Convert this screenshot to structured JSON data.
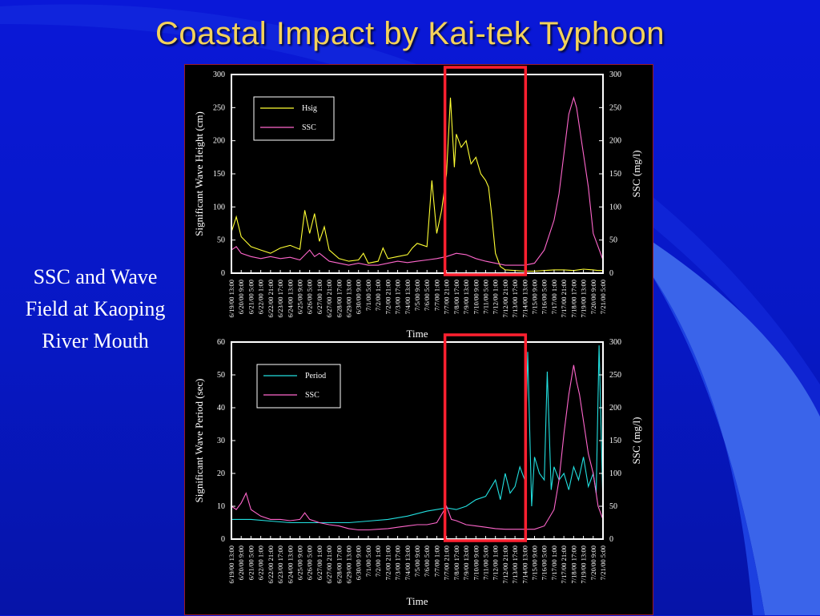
{
  "slide": {
    "title": "Coastal Impact by Kai-tek Typhoon",
    "caption_lines": [
      "SSC and Wave",
      "Field at Kaoping",
      "River Mouth"
    ]
  },
  "colors": {
    "background": "#0718c4",
    "title": "#f4d25a",
    "hsig": "#ffff33",
    "period": "#22e0e0",
    "ssc": "#ff66cc",
    "highlight_box": "#ff2030"
  },
  "time_ticks": [
    "6/19/00 13:00",
    "6/20/00 9:00",
    "6/21/00 5:00",
    "6/22/00 1:00",
    "6/22/00 21:00",
    "6/23/00 17:00",
    "6/24/00 13:00",
    "6/25/00 9:00",
    "6/26/00 5:00",
    "6/27/00 1:00",
    "6/27/00 21:00",
    "6/28/00 17:00",
    "6/29/00 13:00",
    "6/30/00 9:00",
    "7/1/00 5:00",
    "7/2/00 1:00",
    "7/2/00 21:00",
    "7/3/00 17:00",
    "7/4/00 13:00",
    "7/5/00 9:00",
    "7/6/00 5:00",
    "7/7/00 1:00",
    "7/7/00 21:00",
    "7/8/00 17:00",
    "7/9/00 13:00",
    "7/10/00 9:00",
    "7/11/00 5:00",
    "7/12/00 1:00",
    "7/12/00 21:00",
    "7/13/00 17:00",
    "7/14/00 13:00",
    "7/15/00 9:00",
    "7/16/00 5:00",
    "7/17/00 1:00",
    "7/17/00 21:00",
    "7/18/00 17:00",
    "7/19/00 13:00",
    "7/20/00 9:00",
    "7/21/00 5:00"
  ],
  "chart_data": [
    {
      "type": "line",
      "xlabel": "Time",
      "ylabel": "Significant Wave Height (cm)",
      "y2label": "SSC (mg/l)",
      "ylim": [
        0,
        300
      ],
      "y2lim": [
        0,
        300
      ],
      "yticks": [
        "0",
        "50",
        "100",
        "150",
        "200",
        "250",
        "300"
      ],
      "y2ticks": [
        "0",
        "50",
        "100",
        "150",
        "200",
        "250",
        "300"
      ],
      "legend_position": "top-left",
      "highlight_range": [
        "7/7/00 21:00",
        "7/14/00 13:00"
      ],
      "series": [
        {
          "name": "Hsig",
          "axis": "left",
          "color": "#ffff33",
          "points": [
            [
              0,
              62
            ],
            [
              0.5,
              85
            ],
            [
              1,
              55
            ],
            [
              2,
              40
            ],
            [
              3,
              35
            ],
            [
              4,
              30
            ],
            [
              5,
              38
            ],
            [
              6,
              42
            ],
            [
              7,
              36
            ],
            [
              7.5,
              95
            ],
            [
              8,
              60
            ],
            [
              8.5,
              90
            ],
            [
              9,
              48
            ],
            [
              9.5,
              70
            ],
            [
              10,
              35
            ],
            [
              11,
              22
            ],
            [
              12,
              18
            ],
            [
              13,
              20
            ],
            [
              13.5,
              30
            ],
            [
              14,
              15
            ],
            [
              15,
              18
            ],
            [
              15.5,
              38
            ],
            [
              16,
              22
            ],
            [
              17,
              25
            ],
            [
              18,
              28
            ],
            [
              18.5,
              38
            ],
            [
              19,
              45
            ],
            [
              20,
              40
            ],
            [
              20.5,
              140
            ],
            [
              21,
              60
            ],
            [
              21.5,
              95
            ],
            [
              22,
              150
            ],
            [
              22.4,
              265
            ],
            [
              22.8,
              160
            ],
            [
              23,
              210
            ],
            [
              23.5,
              190
            ],
            [
              24,
              200
            ],
            [
              24.5,
              165
            ],
            [
              25,
              175
            ],
            [
              25.5,
              150
            ],
            [
              26,
              140
            ],
            [
              26.3,
              130
            ],
            [
              26.6,
              90
            ],
            [
              27,
              30
            ],
            [
              27.5,
              10
            ],
            [
              28,
              5
            ],
            [
              29,
              4
            ],
            [
              30,
              3
            ],
            [
              31,
              3
            ],
            [
              32,
              4
            ],
            [
              33,
              5
            ],
            [
              34,
              5
            ],
            [
              35,
              4
            ],
            [
              36,
              6
            ],
            [
              37,
              5
            ],
            [
              37.5,
              4
            ],
            [
              38,
              4
            ]
          ]
        },
        {
          "name": "SSC",
          "axis": "right",
          "color": "#ff66cc",
          "points": [
            [
              0,
              35
            ],
            [
              0.5,
              40
            ],
            [
              1,
              30
            ],
            [
              2,
              25
            ],
            [
              3,
              22
            ],
            [
              4,
              25
            ],
            [
              5,
              22
            ],
            [
              6,
              24
            ],
            [
              7,
              20
            ],
            [
              8,
              35
            ],
            [
              8.5,
              25
            ],
            [
              9,
              30
            ],
            [
              10,
              18
            ],
            [
              11,
              15
            ],
            [
              12,
              12
            ],
            [
              13,
              15
            ],
            [
              14,
              12
            ],
            [
              15,
              12
            ],
            [
              16,
              15
            ],
            [
              17,
              18
            ],
            [
              18,
              16
            ],
            [
              19,
              18
            ],
            [
              20,
              20
            ],
            [
              21,
              22
            ],
            [
              22,
              25
            ],
            [
              23,
              30
            ],
            [
              24,
              28
            ],
            [
              25,
              22
            ],
            [
              26,
              18
            ],
            [
              27,
              15
            ],
            [
              28,
              12
            ],
            [
              29,
              12
            ],
            [
              30,
              12
            ],
            [
              31,
              15
            ],
            [
              32,
              35
            ],
            [
              33,
              80
            ],
            [
              33.5,
              120
            ],
            [
              34,
              180
            ],
            [
              34.5,
              240
            ],
            [
              35,
              265
            ],
            [
              35.3,
              250
            ],
            [
              35.7,
              210
            ],
            [
              36,
              180
            ],
            [
              36.5,
              130
            ],
            [
              37,
              60
            ],
            [
              37.5,
              40
            ],
            [
              38,
              20
            ]
          ]
        }
      ]
    },
    {
      "type": "line",
      "xlabel": "Time",
      "ylabel": "Significant Wave Period (sec)",
      "y2label": "SSC (mg/l)",
      "ylim": [
        0,
        60
      ],
      "y2lim": [
        0,
        300
      ],
      "yticks": [
        "0",
        "10",
        "20",
        "30",
        "40",
        "50",
        "60"
      ],
      "y2ticks": [
        "0",
        "50",
        "100",
        "150",
        "200",
        "250",
        "300"
      ],
      "legend_position": "top-left",
      "highlight_range": [
        "7/7/00 21:00",
        "7/14/00 13:00"
      ],
      "series": [
        {
          "name": "Period",
          "axis": "left",
          "color": "#22e0e0",
          "points": [
            [
              0,
              6
            ],
            [
              2,
              6
            ],
            [
              4,
              5.5
            ],
            [
              6,
              5
            ],
            [
              8,
              5
            ],
            [
              10,
              5
            ],
            [
              12,
              5
            ],
            [
              14,
              5.5
            ],
            [
              16,
              6
            ],
            [
              18,
              7
            ],
            [
              20,
              8.5
            ],
            [
              21,
              9
            ],
            [
              22,
              9.5
            ],
            [
              23,
              9
            ],
            [
              24,
              10
            ],
            [
              25,
              12
            ],
            [
              26,
              13
            ],
            [
              27,
              18
            ],
            [
              27.5,
              12
            ],
            [
              28,
              20
            ],
            [
              28.5,
              14
            ],
            [
              29,
              16
            ],
            [
              29.5,
              22
            ],
            [
              30,
              18
            ],
            [
              30.3,
              57
            ],
            [
              30.7,
              10
            ],
            [
              31,
              25
            ],
            [
              31.5,
              20
            ],
            [
              32,
              18
            ],
            [
              32.3,
              51
            ],
            [
              32.7,
              15
            ],
            [
              33,
              22
            ],
            [
              33.5,
              18
            ],
            [
              34,
              20
            ],
            [
              34.5,
              15
            ],
            [
              35,
              22
            ],
            [
              35.5,
              18
            ],
            [
              36,
              25
            ],
            [
              36.5,
              16
            ],
            [
              37,
              20
            ],
            [
              37.3,
              14
            ],
            [
              37.6,
              59
            ],
            [
              38,
              10
            ]
          ]
        },
        {
          "name": "SSC",
          "axis": "right",
          "color": "#ff66cc",
          "points": [
            [
              0,
              50
            ],
            [
              0.5,
              45
            ],
            [
              1,
              55
            ],
            [
              1.5,
              70
            ],
            [
              2,
              45
            ],
            [
              3,
              35
            ],
            [
              4,
              30
            ],
            [
              5,
              30
            ],
            [
              6,
              28
            ],
            [
              7,
              30
            ],
            [
              7.5,
              40
            ],
            [
              8,
              30
            ],
            [
              9,
              25
            ],
            [
              10,
              22
            ],
            [
              11,
              20
            ],
            [
              12,
              16
            ],
            [
              13,
              14
            ],
            [
              14,
              14
            ],
            [
              15,
              15
            ],
            [
              16,
              16
            ],
            [
              17,
              18
            ],
            [
              18,
              20
            ],
            [
              19,
              22
            ],
            [
              20,
              22
            ],
            [
              21,
              25
            ],
            [
              22,
              50
            ],
            [
              22.5,
              30
            ],
            [
              23,
              28
            ],
            [
              24,
              22
            ],
            [
              25,
              20
            ],
            [
              26,
              18
            ],
            [
              27,
              16
            ],
            [
              28,
              15
            ],
            [
              29,
              15
            ],
            [
              30,
              15
            ],
            [
              31,
              15
            ],
            [
              32,
              20
            ],
            [
              33,
              45
            ],
            [
              33.5,
              90
            ],
            [
              34,
              160
            ],
            [
              34.5,
              220
            ],
            [
              35,
              265
            ],
            [
              35.3,
              240
            ],
            [
              35.6,
              220
            ],
            [
              36,
              180
            ],
            [
              36.5,
              130
            ],
            [
              37,
              100
            ],
            [
              37.5,
              50
            ],
            [
              38,
              30
            ]
          ]
        }
      ]
    }
  ]
}
